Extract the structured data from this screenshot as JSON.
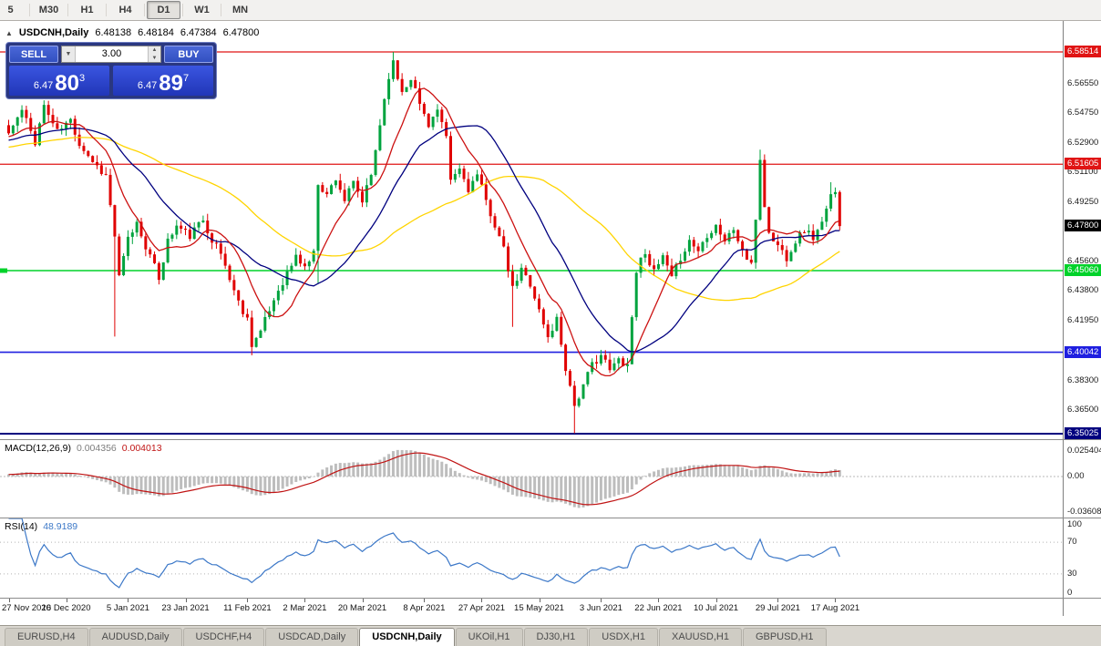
{
  "toolbar": {
    "periods": [
      "5",
      "M30",
      "H1",
      "H4",
      "D1",
      "W1",
      "MN"
    ],
    "active": "D1"
  },
  "chart": {
    "collapse_icon": "▲",
    "title": "USDCNH,Daily",
    "ohlc": {
      "open": "6.48138",
      "high": "6.48184",
      "low": "6.47384",
      "close": "6.47800"
    },
    "one_click": {
      "sell_label": "SELL",
      "buy_label": "BUY",
      "volume": "3.00",
      "sell_price": {
        "base": "6.47",
        "pips": "80",
        "pt": "3"
      },
      "buy_price": {
        "base": "6.47",
        "pips": "89",
        "pt": "7"
      },
      "dropdown_icon": "▼",
      "spin_up_icon": "▲",
      "spin_down_icon": "▼"
    },
    "colors": {
      "bull": "#00a33e",
      "bear": "#e00000"
    },
    "scale": {
      "pmin": 6.3469,
      "pmax": 6.6042
    },
    "levels": [
      {
        "price": 6.58514,
        "label": "6.58514",
        "color": "#e01414",
        "w": 1.2
      },
      {
        "price": 6.51605,
        "label": "6.51605",
        "color": "#e01414",
        "w": 1.2
      },
      {
        "price": 6.4506,
        "label": "6.45060",
        "color": "#00d22a",
        "w": 1.6,
        "edge_marker": true
      },
      {
        "price": 6.40042,
        "label": "6.40042",
        "color": "#1f1fe0",
        "w": 1.6
      },
      {
        "price": 6.35025,
        "label": "6.35025",
        "color": "#00007f",
        "w": 2
      }
    ],
    "current_price": {
      "value": 6.478,
      "label": "6.47800",
      "badge": "#000000"
    },
    "y_ticks": [
      "6.56550",
      "6.54750",
      "6.52900",
      "6.51100",
      "6.49250",
      "6.45600",
      "6.43800",
      "6.41950",
      "6.38300",
      "6.36500"
    ],
    "x_labels": [
      [
        "27 Nov 2020",
        0
      ],
      [
        "16 Dec 2020",
        13
      ],
      [
        "5 Jan 2021",
        27
      ],
      [
        "23 Jan 2021",
        40
      ],
      [
        "11 Feb 2021",
        54
      ],
      [
        "2 Mar 2021",
        67
      ],
      [
        "20 Mar 2021",
        80
      ],
      [
        "8 Apr 2021",
        94
      ],
      [
        "27 Apr 2021",
        107
      ],
      [
        "15 May 2021",
        120
      ],
      [
        "3 Jun 2021",
        134
      ],
      [
        "22 Jun 2021",
        147
      ],
      [
        "10 Jul 2021",
        160
      ],
      [
        "29 Jul 2021",
        174
      ],
      [
        "17 Aug 2021",
        187
      ]
    ],
    "ma": [
      {
        "period": 52,
        "color": "#ffd400"
      },
      {
        "period": 24,
        "color": "#00007f"
      },
      {
        "period": 10,
        "color": "#cc1111"
      }
    ],
    "candles": {
      "count": 189,
      "seed": 11,
      "noise": 0.0026,
      "wick": 0.0045,
      "anchors": [
        [
          0,
          6.535
        ],
        [
          3,
          6.549
        ],
        [
          6,
          6.53
        ],
        [
          8,
          6.552
        ],
        [
          11,
          6.536
        ],
        [
          14,
          6.543
        ],
        [
          16,
          6.529
        ],
        [
          19,
          6.518
        ],
        [
          22,
          6.509
        ],
        [
          24,
          6.472
        ],
        [
          25,
          6.446
        ],
        [
          27,
          6.47
        ],
        [
          29,
          6.48
        ],
        [
          31,
          6.466
        ],
        [
          34,
          6.446
        ],
        [
          36,
          6.469
        ],
        [
          38,
          6.478
        ],
        [
          41,
          6.472
        ],
        [
          44,
          6.482
        ],
        [
          46,
          6.47
        ],
        [
          48,
          6.461
        ],
        [
          50,
          6.446
        ],
        [
          52,
          6.431
        ],
        [
          54,
          6.421
        ],
        [
          55,
          6.406
        ],
        [
          57,
          6.413
        ],
        [
          59,
          6.426
        ],
        [
          61,
          6.439
        ],
        [
          63,
          6.449
        ],
        [
          65,
          6.459
        ],
        [
          67,
          6.453
        ],
        [
          69,
          6.461
        ],
        [
          70,
          6.505
        ],
        [
          72,
          6.497
        ],
        [
          74,
          6.508
        ],
        [
          76,
          6.494
        ],
        [
          78,
          6.504
        ],
        [
          80,
          6.493
        ],
        [
          82,
          6.509
        ],
        [
          84,
          6.541
        ],
        [
          86,
          6.571
        ],
        [
          87,
          6.578
        ],
        [
          89,
          6.561
        ],
        [
          91,
          6.57
        ],
        [
          93,
          6.553
        ],
        [
          95,
          6.541
        ],
        [
          97,
          6.549
        ],
        [
          99,
          6.531
        ],
        [
          100,
          6.506
        ],
        [
          102,
          6.513
        ],
        [
          104,
          6.501
        ],
        [
          106,
          6.509
        ],
        [
          108,
          6.493
        ],
        [
          110,
          6.479
        ],
        [
          112,
          6.463
        ],
        [
          114,
          6.439
        ],
        [
          116,
          6.451
        ],
        [
          118,
          6.443
        ],
        [
          120,
          6.426
        ],
        [
          122,
          6.409
        ],
        [
          124,
          6.421
        ],
        [
          126,
          6.391
        ],
        [
          128,
          6.368
        ],
        [
          130,
          6.379
        ],
        [
          132,
          6.393
        ],
        [
          134,
          6.399
        ],
        [
          136,
          6.389
        ],
        [
          138,
          6.396
        ],
        [
          140,
          6.393
        ],
        [
          142,
          6.451
        ],
        [
          144,
          6.463
        ],
        [
          146,
          6.449
        ],
        [
          148,
          6.459
        ],
        [
          150,
          6.445
        ],
        [
          152,
          6.459
        ],
        [
          154,
          6.469
        ],
        [
          156,
          6.463
        ],
        [
          158,
          6.473
        ],
        [
          160,
          6.479
        ],
        [
          162,
          6.469
        ],
        [
          164,
          6.476
        ],
        [
          166,
          6.463
        ],
        [
          168,
          6.453
        ],
        [
          169,
          6.483
        ],
        [
          170,
          6.519
        ],
        [
          171,
          6.491
        ],
        [
          172,
          6.473
        ],
        [
          174,
          6.466
        ],
        [
          176,
          6.459
        ],
        [
          178,
          6.469
        ],
        [
          180,
          6.476
        ],
        [
          182,
          6.471
        ],
        [
          184,
          6.479
        ],
        [
          186,
          6.496
        ],
        [
          187,
          6.501
        ],
        [
          188,
          6.478
        ]
      ],
      "specials": [
        {
          "bar": 24,
          "low": 6.41
        },
        {
          "bar": 55,
          "low": 6.3985
        },
        {
          "bar": 70,
          "low": 6.443
        },
        {
          "bar": 87,
          "high": 6.5851
        },
        {
          "bar": 114,
          "low": 6.416
        },
        {
          "bar": 128,
          "low": 6.3505
        },
        {
          "bar": 170,
          "high": 6.525
        },
        {
          "bar": 186,
          "high": 6.505
        }
      ]
    }
  },
  "macd": {
    "name": "MACD(12,26,9)",
    "value_main": "0.004356",
    "value_signal": "0.004013",
    "fast": 12,
    "slow": 26,
    "signal": 9,
    "axis": [
      "0.025404",
      "0.00",
      "-0.03608"
    ],
    "hist_color": "#bdbdbd",
    "line_color": "#c01414"
  },
  "rsi": {
    "name": "RSI(14)",
    "value": "48.9189",
    "period": 14,
    "axis": [
      "100",
      "70",
      "30",
      "0"
    ],
    "levels": [
      70,
      30
    ],
    "color": "#3c78c8"
  },
  "tabs": {
    "active": "USDCNH,Daily",
    "items": [
      "EURUSD,H4",
      "AUDUSD,Daily",
      "USDCHF,H4",
      "USDCAD,Daily",
      "USDCNH,Daily",
      "UKOil,H1",
      "DJ30,H1",
      "USDX,H1",
      "XAUUSD,H1",
      "GBPUSD,H1"
    ]
  }
}
